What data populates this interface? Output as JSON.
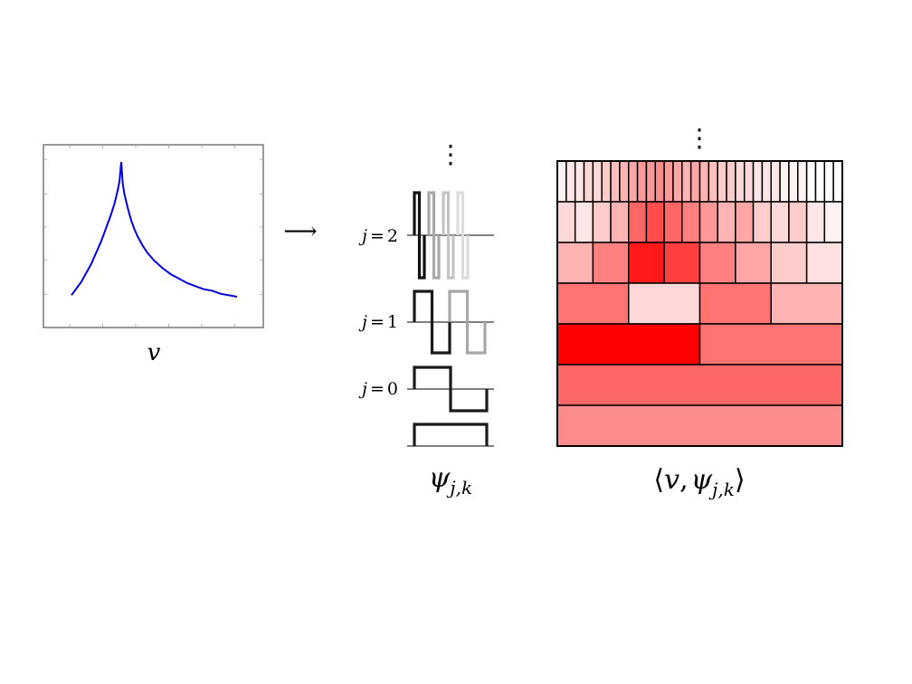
{
  "signal_plot": {
    "caption": "v",
    "curve_color": "#0000dd",
    "curve": {
      "x": [
        0.0,
        0.02,
        0.04,
        0.06,
        0.08,
        0.1,
        0.12,
        0.14,
        0.16,
        0.18,
        0.2,
        0.22,
        0.24,
        0.26,
        0.28,
        0.29,
        0.3,
        0.301,
        0.31,
        0.32,
        0.34,
        0.36,
        0.38,
        0.4,
        0.43,
        0.46,
        0.5,
        0.55,
        0.6,
        0.65,
        0.7,
        0.75,
        0.8,
        0.85,
        0.9,
        0.95,
        1.0
      ],
      "y": [
        0.12,
        0.15,
        0.18,
        0.21,
        0.25,
        0.29,
        0.33,
        0.38,
        0.43,
        0.48,
        0.54,
        0.6,
        0.66,
        0.73,
        0.82,
        0.88,
        1.0,
        1.0,
        0.86,
        0.79,
        0.7,
        0.62,
        0.56,
        0.51,
        0.45,
        0.4,
        0.35,
        0.3,
        0.26,
        0.23,
        0.2,
        0.18,
        0.16,
        0.15,
        0.13,
        0.12,
        0.11
      ]
    }
  },
  "arrow": "⟶",
  "wavelets": {
    "caption_base": "ψ",
    "caption_sub": "j,k",
    "more_levels": "⋮",
    "levels": [
      {
        "j_label": "j",
        "eq": "=",
        "value": "2",
        "shades": [
          "#111111",
          "#a8a8a8",
          "#c4c4c4",
          "#dcdcdc"
        ]
      },
      {
        "j_label": "j",
        "eq": "=",
        "value": "1",
        "shades": [
          "#1a1a1a",
          "#a8a8a8"
        ]
      },
      {
        "j_label": "j",
        "eq": "=",
        "value": "0",
        "shades": [
          "#1a1a1a"
        ]
      }
    ],
    "scaling_shade": "#1a1a1a"
  },
  "coefficients": {
    "caption_left": "⟨",
    "caption_v": "v",
    "caption_comma": ",",
    "caption_psi": "ψ",
    "caption_sub": "j,k",
    "caption_right": "⟩",
    "more_levels": "⋮",
    "base_color": "#ff0000",
    "rows": [
      [
        0.05,
        0.1,
        0.1,
        0.15,
        0.15,
        0.2,
        0.25,
        0.3,
        0.35,
        0.4,
        0.4,
        0.45,
        0.4,
        0.35,
        0.3,
        0.35,
        0.3,
        0.25,
        0.2,
        0.2,
        0.15,
        0.15,
        0.1,
        0.1,
        0.1,
        0.05,
        0.05,
        0.05,
        0.0,
        0.0,
        0.0,
        0.0
      ],
      [
        0.15,
        0.1,
        0.2,
        0.3,
        0.6,
        0.7,
        0.6,
        0.5,
        0.4,
        0.3,
        0.35,
        0.2,
        0.15,
        0.2,
        0.1,
        0.05
      ],
      [
        0.3,
        0.5,
        0.9,
        0.75,
        0.5,
        0.35,
        0.2,
        0.12
      ],
      [
        0.55,
        0.15,
        0.55,
        0.3
      ],
      [
        1.0,
        0.55
      ],
      [
        0.6
      ],
      [
        0.45
      ]
    ]
  }
}
